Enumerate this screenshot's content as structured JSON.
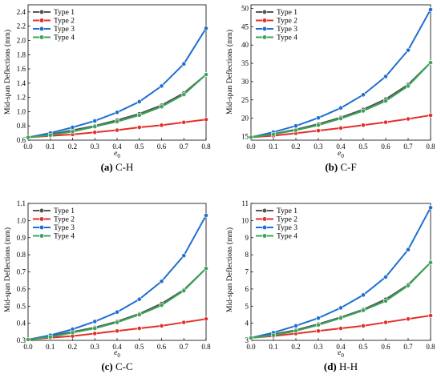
{
  "chart_data": [
    {
      "type": "line",
      "caption_tag": "(a)",
      "caption_text": "C-H",
      "xlabel_base": "e",
      "xlabel_sub": "0",
      "ylabel": "Mid-span Deflections (mm)",
      "x": [
        0.0,
        0.1,
        0.2,
        0.3,
        0.4,
        0.5,
        0.6,
        0.7,
        0.8
      ],
      "xticks": [
        "0.0",
        "0.1",
        "0.2",
        "0.3",
        "0.4",
        "0.5",
        "0.6",
        "0.7",
        "0.8"
      ],
      "xlim": [
        0,
        0.8
      ],
      "ylim": [
        0.6,
        2.5
      ],
      "yticks": [
        "0.6",
        "0.8",
        "1.0",
        "1.2",
        "1.4",
        "1.6",
        "1.8",
        "2.0",
        "2.2",
        "2.4"
      ],
      "legend_position": "top-left",
      "series": [
        {
          "name": "Type 1",
          "color": "#555555",
          "values": [
            0.64,
            0.68,
            0.74,
            0.8,
            0.88,
            0.97,
            1.09,
            1.26,
            1.52
          ]
        },
        {
          "name": "Type 2",
          "color": "#e2302b",
          "values": [
            0.64,
            0.66,
            0.68,
            0.71,
            0.74,
            0.78,
            0.81,
            0.85,
            0.89
          ]
        },
        {
          "name": "Type 3",
          "color": "#1f6fd0",
          "values": [
            0.64,
            0.7,
            0.78,
            0.87,
            0.99,
            1.14,
            1.36,
            1.67,
            2.17
          ]
        },
        {
          "name": "Type 4",
          "color": "#3aa65a",
          "values": [
            0.64,
            0.67,
            0.72,
            0.79,
            0.86,
            0.95,
            1.07,
            1.24,
            1.52
          ]
        }
      ]
    },
    {
      "type": "line",
      "caption_tag": "(b)",
      "caption_text": "C-F",
      "xlabel_base": "e",
      "xlabel_sub": "0",
      "ylabel": "Mid-span Deflections (mm)",
      "x": [
        0.0,
        0.1,
        0.2,
        0.3,
        0.4,
        0.5,
        0.6,
        0.7,
        0.8
      ],
      "xticks": [
        "0.0",
        "0.1",
        "0.2",
        "0.3",
        "0.4",
        "0.5",
        "0.6",
        "0.7",
        "0.8"
      ],
      "xlim": [
        0,
        0.8
      ],
      "ylim": [
        14,
        51
      ],
      "yticks": [
        "15",
        "20",
        "25",
        "30",
        "35",
        "40",
        "45",
        "50"
      ],
      "legend_position": "top-left",
      "series": [
        {
          "name": "Type 1",
          "color": "#555555",
          "values": [
            14.8,
            15.7,
            16.9,
            18.4,
            20.2,
            22.4,
            25.2,
            29.2,
            35.2
          ]
        },
        {
          "name": "Type 2",
          "color": "#e2302b",
          "values": [
            14.8,
            15.2,
            15.9,
            16.6,
            17.3,
            18.1,
            18.9,
            19.8,
            20.8
          ]
        },
        {
          "name": "Type 3",
          "color": "#1f6fd0",
          "values": [
            14.8,
            16.2,
            17.9,
            20.1,
            22.8,
            26.4,
            31.4,
            38.6,
            49.7
          ]
        },
        {
          "name": "Type 4",
          "color": "#3aa65a",
          "values": [
            14.8,
            15.6,
            16.7,
            18.1,
            19.9,
            22.0,
            24.7,
            28.8,
            35.2
          ]
        }
      ]
    },
    {
      "type": "line",
      "caption_tag": "(c)",
      "caption_text": "C-C",
      "xlabel_base": "e",
      "xlabel_sub": "0",
      "ylabel": "Mid-span Deflections (mm)",
      "x": [
        0.0,
        0.1,
        0.2,
        0.3,
        0.4,
        0.5,
        0.6,
        0.7,
        0.8
      ],
      "xticks": [
        "0.0",
        "0.1",
        "0.2",
        "0.3",
        "0.4",
        "0.5",
        "0.6",
        "0.7",
        "0.8"
      ],
      "xlim": [
        0,
        0.8
      ],
      "ylim": [
        0.3,
        1.1
      ],
      "yticks": [
        "0.3",
        "0.4",
        "0.5",
        "0.6",
        "0.7",
        "0.8",
        "0.9",
        "1.0",
        "1.1"
      ],
      "legend_position": "top-left",
      "series": [
        {
          "name": "Type 1",
          "color": "#555555",
          "values": [
            0.305,
            0.325,
            0.35,
            0.375,
            0.41,
            0.455,
            0.515,
            0.595,
            0.72
          ]
        },
        {
          "name": "Type 2",
          "color": "#e2302b",
          "values": [
            0.305,
            0.315,
            0.325,
            0.34,
            0.355,
            0.37,
            0.385,
            0.405,
            0.425
          ]
        },
        {
          "name": "Type 3",
          "color": "#1f6fd0",
          "values": [
            0.305,
            0.33,
            0.365,
            0.41,
            0.465,
            0.54,
            0.645,
            0.795,
            1.03
          ]
        },
        {
          "name": "Type 4",
          "color": "#3aa65a",
          "values": [
            0.305,
            0.32,
            0.345,
            0.37,
            0.405,
            0.45,
            0.505,
            0.59,
            0.72
          ]
        }
      ]
    },
    {
      "type": "line",
      "caption_tag": "(d)",
      "caption_text": "H-H",
      "xlabel_base": "e",
      "xlabel_sub": "0",
      "ylabel": "Mid-span Deflections (mm)",
      "x": [
        0.0,
        0.1,
        0.2,
        0.3,
        0.4,
        0.5,
        0.6,
        0.7,
        0.8
      ],
      "xticks": [
        "0.0",
        "0.1",
        "0.2",
        "0.3",
        "0.4",
        "0.5",
        "0.6",
        "0.7",
        "0.8"
      ],
      "xlim": [
        0,
        0.8
      ],
      "ylim": [
        3,
        11
      ],
      "yticks": [
        "3",
        "4",
        "5",
        "6",
        "7",
        "8",
        "9",
        "10",
        "11"
      ],
      "legend_position": "top-left",
      "series": [
        {
          "name": "Type 1",
          "color": "#555555",
          "values": [
            3.15,
            3.35,
            3.6,
            3.95,
            4.35,
            4.8,
            5.4,
            6.25,
            7.55
          ]
        },
        {
          "name": "Type 2",
          "color": "#e2302b",
          "values": [
            3.15,
            3.25,
            3.4,
            3.55,
            3.7,
            3.85,
            4.05,
            4.25,
            4.45
          ]
        },
        {
          "name": "Type 3",
          "color": "#1f6fd0",
          "values": [
            3.15,
            3.45,
            3.85,
            4.3,
            4.9,
            5.65,
            6.7,
            8.3,
            10.75
          ]
        },
        {
          "name": "Type 4",
          "color": "#3aa65a",
          "values": [
            3.15,
            3.3,
            3.55,
            3.9,
            4.3,
            4.75,
            5.3,
            6.2,
            7.55
          ]
        }
      ]
    }
  ]
}
